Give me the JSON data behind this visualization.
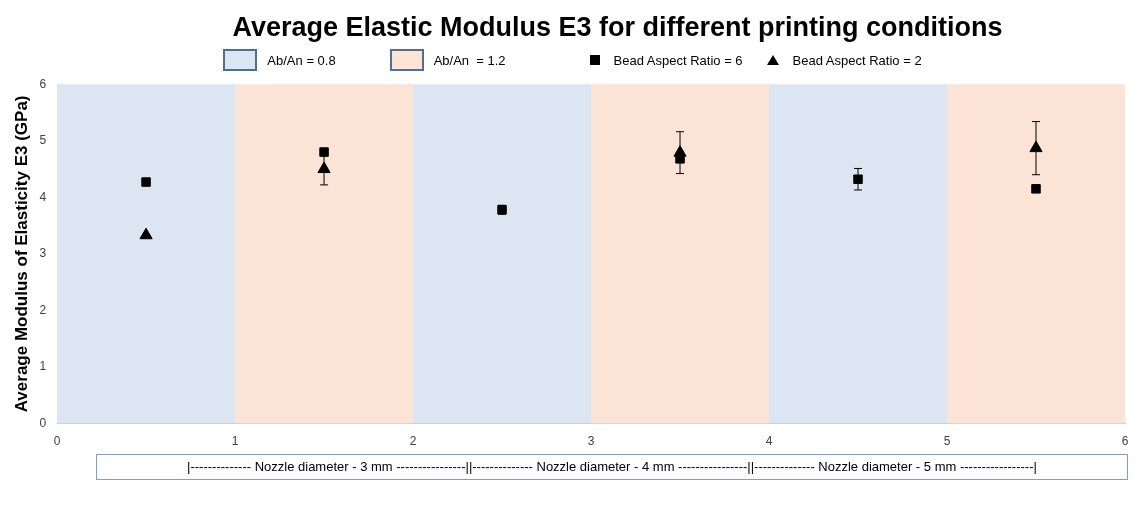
{
  "chart_data": {
    "type": "scatter",
    "title": "Average Elastic Modulus E3 for different printing conditions",
    "ylabel": "Average Modulus of Elasticity E3 (GPa)",
    "xlim": [
      0,
      6
    ],
    "xticks": [
      0,
      1,
      2,
      3,
      4,
      5,
      6
    ],
    "ylim": [
      0,
      6
    ],
    "yticks": [
      0,
      1,
      2,
      3,
      4,
      5,
      6
    ],
    "grid": false,
    "legend": "top",
    "series": [
      {
        "name": "Bead Aspect Ratio = 6",
        "color": "#000000",
        "marker": "square",
        "x": [
          0.5,
          1.5,
          2.5,
          3.5,
          4.5,
          5.5
        ],
        "values": [
          4.27,
          4.8,
          3.78,
          4.68,
          4.32,
          4.15
        ],
        "errors": [
          null,
          null,
          0.08,
          null,
          0.19,
          null
        ]
      },
      {
        "name": "Bead Aspect Ratio = 2",
        "color": "#000000",
        "marker": "triangle",
        "x": [
          0.5,
          1.5,
          2.5,
          3.5,
          4.5,
          5.5
        ],
        "values": [
          3.33,
          4.5,
          null,
          4.79,
          null,
          4.87
        ],
        "errors": [
          null,
          0.28,
          null,
          0.37,
          null,
          0.47
        ]
      }
    ],
    "bands": [
      {
        "axis": "x",
        "from": 0,
        "to": 1,
        "label": "Ab/An = 0.8",
        "color": "#dce6f2"
      },
      {
        "axis": "x",
        "from": 1,
        "to": 2,
        "label": "Ab/An  = 1.2",
        "color": "#fbe3d6"
      },
      {
        "axis": "x",
        "from": 2,
        "to": 3,
        "color": "#dce6f2"
      },
      {
        "axis": "x",
        "from": 3,
        "to": 4,
        "color": "#fbe3d6"
      },
      {
        "axis": "x",
        "from": 4,
        "to": 5,
        "color": "#dce6f2"
      },
      {
        "axis": "x",
        "from": 5,
        "to": 6,
        "color": "#fbe3d6"
      }
    ],
    "annotations": [
      "|-------------- Nozzle diameter - 3 mm ----------------||-------------- Nozzle diameter - 4 mm ----------------||-------------- Nozzle diameter - 5 mm -----------------|"
    ]
  }
}
